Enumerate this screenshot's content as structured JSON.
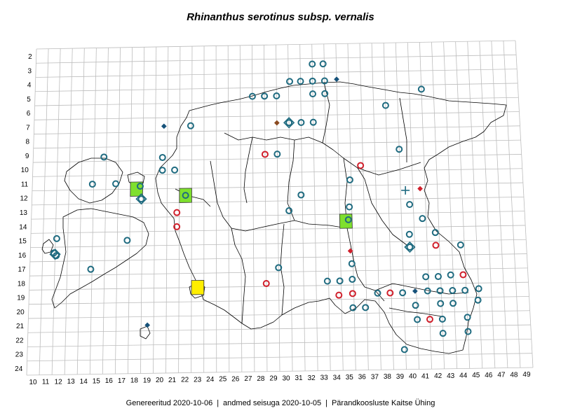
{
  "title": "Rhinanthus serotinus subsp. vernalis",
  "footer": {
    "generated": "Genereeritud 2020-10-06",
    "data_state": "andmed seisuga 2020-10-05",
    "organization": "Pärandkoosluste Kaitse Ühing"
  },
  "grid": {
    "columns": [
      10,
      11,
      12,
      13,
      14,
      15,
      16,
      17,
      18,
      19,
      20,
      21,
      22,
      23,
      24,
      25,
      26,
      27,
      28,
      29,
      30,
      31,
      32,
      33,
      34,
      35,
      36,
      37,
      38,
      39,
      40,
      41,
      42,
      43,
      44,
      45,
      46,
      47,
      48,
      49
    ],
    "rows": [
      2,
      3,
      4,
      5,
      6,
      7,
      8,
      9,
      10,
      11,
      12,
      13,
      14,
      15,
      16,
      17,
      18,
      19,
      20,
      21,
      22,
      23,
      24
    ]
  },
  "legend_colors": {
    "teal": "#1f6b80",
    "red": "#d0202c",
    "navy": "#16527a",
    "brown": "#8a4a20",
    "green": "#7fe02e",
    "yellow": "#ffee00"
  },
  "squares": [
    {
      "c": 18,
      "r": 11.5,
      "color": "green"
    },
    {
      "c": 22,
      "r": 12,
      "color": "green"
    },
    {
      "c": 35,
      "r": 14,
      "color": "green"
    },
    {
      "c": 23,
      "r": 18.5,
      "color": "yellow"
    }
  ],
  "markers": [
    {
      "c": 32.5,
      "r": 2.9,
      "type": "circle",
      "color": "teal"
    },
    {
      "c": 33.4,
      "r": 2.9,
      "type": "circle",
      "color": "teal"
    },
    {
      "c": 30.6,
      "r": 4.1,
      "type": "circle",
      "color": "teal"
    },
    {
      "c": 31.5,
      "r": 4.1,
      "type": "circle",
      "color": "teal"
    },
    {
      "c": 32.5,
      "r": 4.1,
      "type": "circle",
      "color": "teal"
    },
    {
      "c": 33.5,
      "r": 4.1,
      "type": "circle",
      "color": "teal"
    },
    {
      "c": 34.5,
      "r": 4.0,
      "type": "diamond",
      "color": "navy"
    },
    {
      "c": 41.5,
      "r": 4.8,
      "type": "circle",
      "color": "teal"
    },
    {
      "c": 27.5,
      "r": 5.1,
      "type": "circle",
      "color": "teal"
    },
    {
      "c": 28.5,
      "r": 5.1,
      "type": "circle",
      "color": "teal"
    },
    {
      "c": 29.5,
      "r": 5.1,
      "type": "circle",
      "color": "teal"
    },
    {
      "c": 32.5,
      "r": 5.0,
      "type": "circle",
      "color": "teal"
    },
    {
      "c": 33.5,
      "r": 5.0,
      "type": "circle",
      "color": "teal"
    },
    {
      "c": 38.5,
      "r": 5.9,
      "type": "circle",
      "color": "teal"
    },
    {
      "c": 20.2,
      "r": 7.1,
      "type": "diamond",
      "color": "navy"
    },
    {
      "c": 22.4,
      "r": 7.1,
      "type": "circle",
      "color": "teal"
    },
    {
      "c": 29.5,
      "r": 7.0,
      "type": "diamond",
      "color": "brown"
    },
    {
      "c": 30.5,
      "r": 7.0,
      "type": "circle",
      "color": "teal"
    },
    {
      "c": 30.5,
      "r": 7.0,
      "type": "diamond-outline",
      "color": "teal"
    },
    {
      "c": 31.5,
      "r": 7.0,
      "type": "circle",
      "color": "teal"
    },
    {
      "c": 32.5,
      "r": 7.0,
      "type": "circle",
      "color": "teal"
    },
    {
      "c": 15.3,
      "r": 9.2,
      "type": "circle",
      "color": "teal"
    },
    {
      "c": 20.1,
      "r": 9.3,
      "type": "circle",
      "color": "teal"
    },
    {
      "c": 28.5,
      "r": 9.2,
      "type": "circle",
      "color": "red"
    },
    {
      "c": 29.5,
      "r": 9.2,
      "type": "circle",
      "color": "teal"
    },
    {
      "c": 39.5,
      "r": 9.0,
      "type": "circle",
      "color": "teal"
    },
    {
      "c": 20.1,
      "r": 10.2,
      "type": "circle",
      "color": "teal"
    },
    {
      "c": 21.1,
      "r": 10.2,
      "type": "circle",
      "color": "teal"
    },
    {
      "c": 36.3,
      "r": 10.1,
      "type": "circle",
      "color": "red"
    },
    {
      "c": 14.4,
      "r": 11.1,
      "type": "circle",
      "color": "teal"
    },
    {
      "c": 16.3,
      "r": 11.1,
      "type": "circle",
      "color": "teal"
    },
    {
      "c": 18.3,
      "r": 11.3,
      "type": "circle",
      "color": "teal"
    },
    {
      "c": 35.4,
      "r": 11.1,
      "type": "circle",
      "color": "teal"
    },
    {
      "c": 18.4,
      "r": 12.2,
      "type": "circle",
      "color": "teal"
    },
    {
      "c": 18.4,
      "r": 12.2,
      "type": "diamond-outline",
      "color": "teal"
    },
    {
      "c": 22.0,
      "r": 12.0,
      "type": "circle",
      "color": "teal"
    },
    {
      "c": 31.4,
      "r": 12.1,
      "type": "circle",
      "color": "teal"
    },
    {
      "c": 39.9,
      "r": 11.9,
      "type": "cross",
      "color": "teal"
    },
    {
      "c": 41.1,
      "r": 11.8,
      "type": "diamond",
      "color": "red"
    },
    {
      "c": 21.3,
      "r": 13.2,
      "type": "circle",
      "color": "red"
    },
    {
      "c": 30.4,
      "r": 13.2,
      "type": "circle",
      "color": "teal"
    },
    {
      "c": 35.3,
      "r": 13.0,
      "type": "circle",
      "color": "teal"
    },
    {
      "c": 40.2,
      "r": 12.9,
      "type": "circle",
      "color": "teal"
    },
    {
      "c": 35.2,
      "r": 13.9,
      "type": "circle",
      "color": "teal"
    },
    {
      "c": 41.2,
      "r": 13.9,
      "type": "circle",
      "color": "teal"
    },
    {
      "c": 21.3,
      "r": 14.2,
      "type": "circle",
      "color": "red"
    },
    {
      "c": 11.6,
      "r": 14.9,
      "type": "circle",
      "color": "teal"
    },
    {
      "c": 17.3,
      "r": 15.1,
      "type": "circle",
      "color": "teal"
    },
    {
      "c": 40.1,
      "r": 15.0,
      "type": "circle",
      "color": "teal"
    },
    {
      "c": 42.2,
      "r": 14.9,
      "type": "circle",
      "color": "teal"
    },
    {
      "c": 11.4,
      "r": 15.9,
      "type": "circle",
      "color": "teal"
    },
    {
      "c": 11.6,
      "r": 16.1,
      "type": "circle",
      "color": "teal"
    },
    {
      "c": 11.5,
      "r": 16.0,
      "type": "diamond-outline",
      "color": "teal"
    },
    {
      "c": 35.3,
      "r": 16.1,
      "type": "diamond",
      "color": "red"
    },
    {
      "c": 40.1,
      "r": 15.9,
      "type": "circle",
      "color": "teal"
    },
    {
      "c": 40.1,
      "r": 15.9,
      "type": "diamond-outline",
      "color": "teal"
    },
    {
      "c": 42.2,
      "r": 15.8,
      "type": "circle",
      "color": "red"
    },
    {
      "c": 44.2,
      "r": 15.8,
      "type": "circle",
      "color": "teal"
    },
    {
      "c": 14.4,
      "r": 17.1,
      "type": "circle",
      "color": "teal"
    },
    {
      "c": 29.5,
      "r": 17.2,
      "type": "circle",
      "color": "teal"
    },
    {
      "c": 35.4,
      "r": 17.0,
      "type": "circle",
      "color": "teal"
    },
    {
      "c": 28.5,
      "r": 18.3,
      "type": "circle",
      "color": "red"
    },
    {
      "c": 33.4,
      "r": 18.2,
      "type": "circle",
      "color": "teal"
    },
    {
      "c": 34.4,
      "r": 18.2,
      "type": "circle",
      "color": "teal"
    },
    {
      "c": 35.4,
      "r": 18.1,
      "type": "circle",
      "color": "teal"
    },
    {
      "c": 41.3,
      "r": 18.0,
      "type": "circle",
      "color": "teal"
    },
    {
      "c": 42.3,
      "r": 18.0,
      "type": "circle",
      "color": "teal"
    },
    {
      "c": 43.3,
      "r": 17.9,
      "type": "circle",
      "color": "teal"
    },
    {
      "c": 44.3,
      "r": 17.9,
      "type": "circle",
      "color": "red"
    },
    {
      "c": 34.3,
      "r": 19.2,
      "type": "circle",
      "color": "red"
    },
    {
      "c": 35.4,
      "r": 19.1,
      "type": "circle",
      "color": "red"
    },
    {
      "c": 37.4,
      "r": 19.1,
      "type": "circle",
      "color": "teal"
    },
    {
      "c": 38.4,
      "r": 19.1,
      "type": "circle",
      "color": "red"
    },
    {
      "c": 39.4,
      "r": 19.1,
      "type": "circle",
      "color": "teal"
    },
    {
      "c": 40.4,
      "r": 19.0,
      "type": "diamond",
      "color": "navy"
    },
    {
      "c": 41.4,
      "r": 19.0,
      "type": "circle",
      "color": "teal"
    },
    {
      "c": 42.4,
      "r": 19.0,
      "type": "circle",
      "color": "teal"
    },
    {
      "c": 43.4,
      "r": 19.0,
      "type": "circle",
      "color": "teal"
    },
    {
      "c": 44.4,
      "r": 19.0,
      "type": "circle",
      "color": "teal"
    },
    {
      "c": 45.5,
      "r": 18.9,
      "type": "circle",
      "color": "teal"
    },
    {
      "c": 35.4,
      "r": 20.1,
      "type": "circle",
      "color": "teal"
    },
    {
      "c": 36.4,
      "r": 20.1,
      "type": "circle",
      "color": "teal"
    },
    {
      "c": 40.4,
      "r": 20.0,
      "type": "circle",
      "color": "teal"
    },
    {
      "c": 42.4,
      "r": 19.9,
      "type": "circle",
      "color": "teal"
    },
    {
      "c": 43.4,
      "r": 19.9,
      "type": "circle",
      "color": "teal"
    },
    {
      "c": 45.4,
      "r": 19.7,
      "type": "circle",
      "color": "teal"
    },
    {
      "c": 19.0,
      "r": 21.1,
      "type": "diamond",
      "color": "navy"
    },
    {
      "c": 40.5,
      "r": 21.0,
      "type": "circle",
      "color": "teal"
    },
    {
      "c": 41.5,
      "r": 21.0,
      "type": "circle",
      "color": "red"
    },
    {
      "c": 42.5,
      "r": 21.0,
      "type": "circle",
      "color": "teal"
    },
    {
      "c": 44.5,
      "r": 20.9,
      "type": "circle",
      "color": "teal"
    },
    {
      "c": 42.5,
      "r": 22.0,
      "type": "circle",
      "color": "teal"
    },
    {
      "c": 44.5,
      "r": 21.9,
      "type": "circle",
      "color": "teal"
    },
    {
      "c": 39.4,
      "r": 23.1,
      "type": "circle",
      "color": "teal"
    }
  ]
}
